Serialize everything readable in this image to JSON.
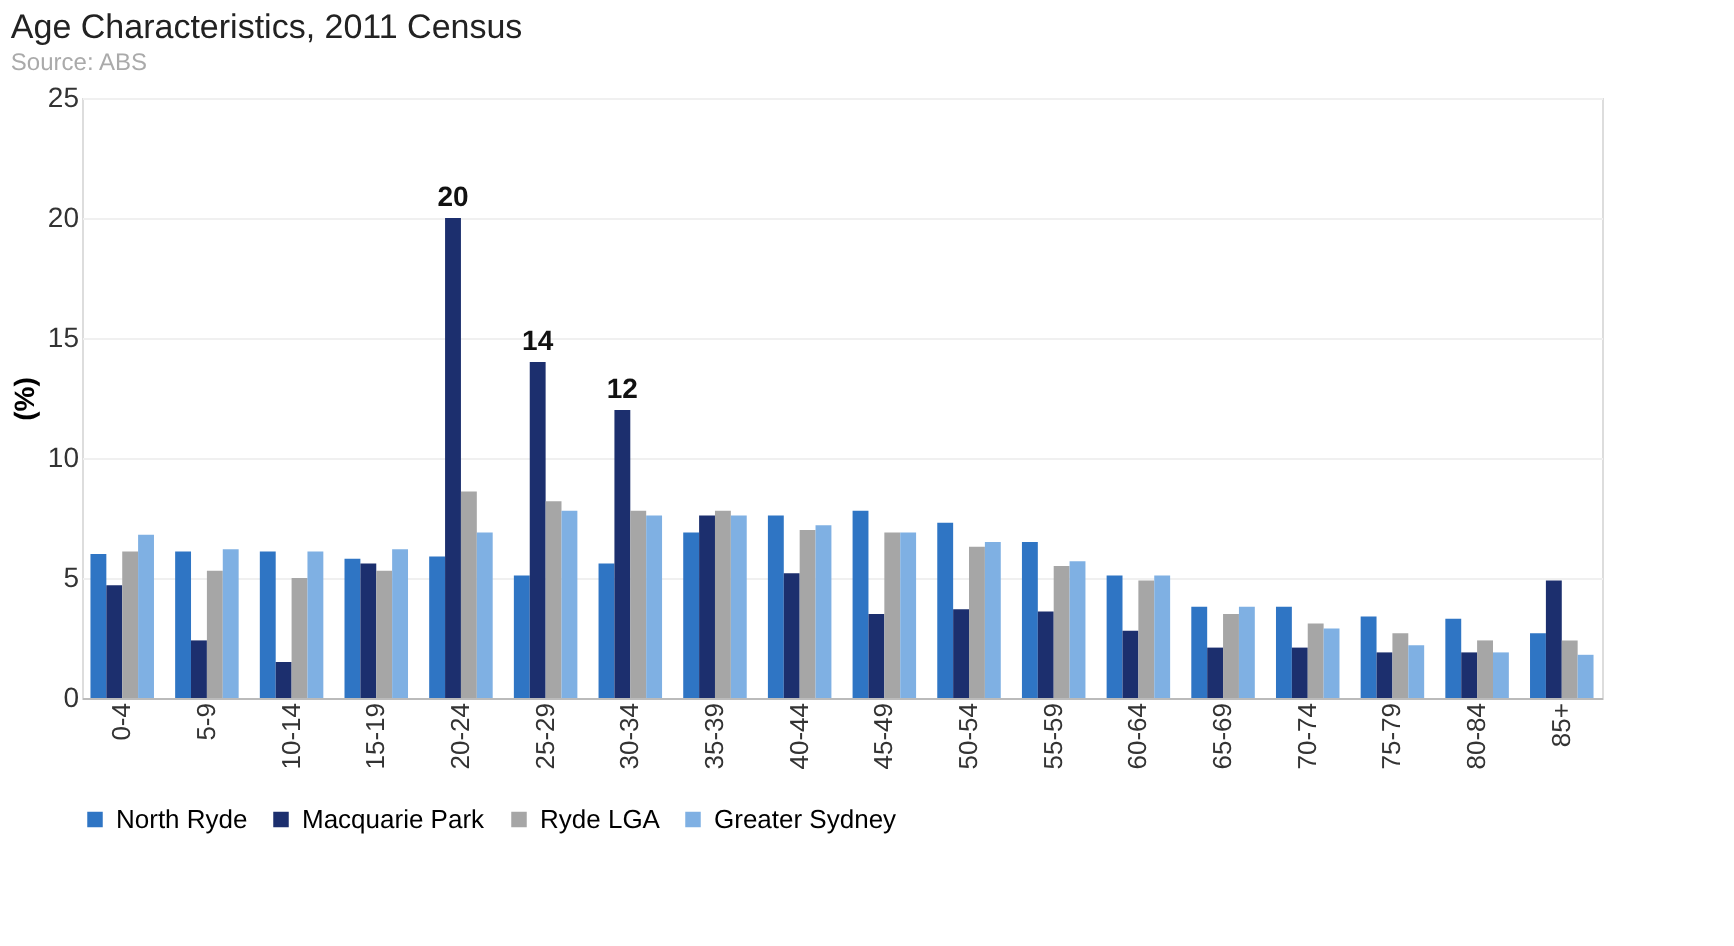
{
  "chart_data": {
    "type": "bar",
    "title": "Age Characteristics, 2011 Census",
    "ylabel": "(%)",
    "categories": [
      "0-4",
      "5-9",
      "10-14",
      "15-19",
      "20-24",
      "25-29",
      "30-34",
      "35-39",
      "40-44",
      "45-49",
      "50-54",
      "55-59",
      "60-64",
      "65-69",
      "70-74",
      "75-79",
      "80-84",
      "85+"
    ],
    "series": [
      {
        "name": "North Ryde",
        "color": "#2f75c4",
        "values": [
          6.0,
          6.1,
          6.1,
          5.8,
          5.9,
          5.1,
          5.6,
          6.9,
          7.6,
          7.8,
          7.3,
          6.5,
          5.1,
          3.8,
          3.8,
          3.4,
          3.3,
          2.7
        ]
      },
      {
        "name": "Macquarie Park",
        "color": "#1c2f6e",
        "values": [
          4.7,
          2.4,
          1.5,
          5.6,
          20,
          14,
          12,
          7.6,
          5.2,
          3.5,
          3.7,
          3.6,
          2.8,
          2.1,
          2.1,
          1.9,
          1.9,
          4.9
        ],
        "value_labels": [
          null,
          null,
          null,
          null,
          "20",
          "14",
          "12",
          null,
          null,
          null,
          null,
          null,
          null,
          null,
          null,
          null,
          null,
          null
        ]
      },
      {
        "name": "Ryde LGA",
        "color": "#a6a6a6",
        "values": [
          6.1,
          5.3,
          5.0,
          5.3,
          8.6,
          8.2,
          7.8,
          7.8,
          7.0,
          6.9,
          6.3,
          5.5,
          4.9,
          3.5,
          3.1,
          2.7,
          2.4,
          2.4
        ]
      },
      {
        "name": "Greater Sydney",
        "color": "#7fb0e3",
        "values": [
          6.8,
          6.2,
          6.1,
          6.2,
          6.9,
          7.8,
          7.6,
          7.6,
          7.2,
          6.9,
          6.5,
          5.7,
          5.1,
          3.8,
          2.9,
          2.2,
          1.9,
          1.8
        ]
      }
    ],
    "ylim": [
      0,
      25
    ],
    "yticks": [
      0,
      5,
      10,
      15,
      20,
      25
    ],
    "grid": "y",
    "legend": "bottom",
    "annotations": [
      "Source: ABS"
    ]
  }
}
